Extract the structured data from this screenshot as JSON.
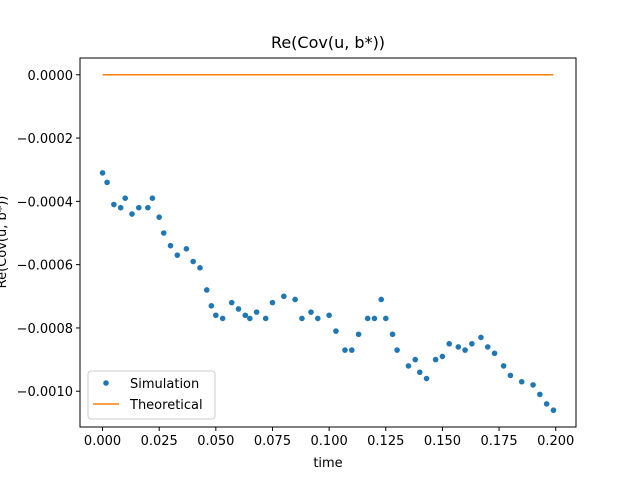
{
  "chart_data": {
    "type": "scatter",
    "title": "Re(Cov(u, b*))",
    "xlabel": "time",
    "ylabel": "Re(Cov(u, b*))",
    "xlim": [
      -0.00995,
      0.20895
    ],
    "ylim": [
      -0.001113,
      5.3e-05
    ],
    "xticks": [
      {
        "value": 0,
        "label": "0.000"
      },
      {
        "value": 0.025,
        "label": "0.025"
      },
      {
        "value": 0.05,
        "label": "0.050"
      },
      {
        "value": 0.075,
        "label": "0.075"
      },
      {
        "value": 0.1,
        "label": "0.100"
      },
      {
        "value": 0.125,
        "label": "0.125"
      },
      {
        "value": 0.15,
        "label": "0.150"
      },
      {
        "value": 0.175,
        "label": "0.175"
      },
      {
        "value": 0.2,
        "label": "0.200"
      }
    ],
    "yticks": [
      {
        "value": -0.001,
        "label": "−0.0010"
      },
      {
        "value": -0.0008,
        "label": "−0.0008"
      },
      {
        "value": -0.0006,
        "label": "−0.0006"
      },
      {
        "value": -0.0004,
        "label": "−0.0004"
      },
      {
        "value": -0.0002,
        "label": "−0.0002"
      },
      {
        "value": 0,
        "label": "0.0000"
      }
    ],
    "legend": "lower left",
    "series": [
      {
        "name": "Simulation",
        "color": "#1f77b4",
        "style": "marker",
        "x": [
          0,
          0.002,
          0.005,
          0.008,
          0.01,
          0.013,
          0.016,
          0.02,
          0.022,
          0.025,
          0.027,
          0.03,
          0.033,
          0.037,
          0.04,
          0.043,
          0.046,
          0.048,
          0.05,
          0.053,
          0.057,
          0.06,
          0.063,
          0.065,
          0.068,
          0.072,
          0.075,
          0.08,
          0.085,
          0.088,
          0.092,
          0.095,
          0.1,
          0.103,
          0.107,
          0.11,
          0.113,
          0.117,
          0.12,
          0.123,
          0.125,
          0.128,
          0.13,
          0.135,
          0.138,
          0.14,
          0.143,
          0.147,
          0.15,
          0.153,
          0.157,
          0.16,
          0.163,
          0.167,
          0.17,
          0.173,
          0.177,
          0.18,
          0.185,
          0.19,
          0.193,
          0.196,
          0.199
        ],
        "values": [
          -0.00031,
          -0.00034,
          -0.00041,
          -0.00042,
          -0.00039,
          -0.00044,
          -0.00042,
          -0.00042,
          -0.00039,
          -0.00045,
          -0.0005,
          -0.00054,
          -0.00057,
          -0.00055,
          -0.00059,
          -0.00061,
          -0.00068,
          -0.00073,
          -0.00076,
          -0.00077,
          -0.00072,
          -0.00074,
          -0.00076,
          -0.00077,
          -0.00075,
          -0.00077,
          -0.00072,
          -0.0007,
          -0.00071,
          -0.00077,
          -0.00075,
          -0.00077,
          -0.00076,
          -0.00081,
          -0.00087,
          -0.00087,
          -0.00082,
          -0.00077,
          -0.00077,
          -0.00071,
          -0.00077,
          -0.00082,
          -0.00087,
          -0.00092,
          -0.0009,
          -0.00094,
          -0.00096,
          -0.0009,
          -0.00089,
          -0.00085,
          -0.00086,
          -0.00087,
          -0.00085,
          -0.00083,
          -0.00086,
          -0.00088,
          -0.00092,
          -0.00095,
          -0.00097,
          -0.00098,
          -0.00101,
          -0.00104,
          -0.00106
        ]
      },
      {
        "name": "Theoretical",
        "color": "#ff7f0e",
        "style": "line",
        "x": [
          0,
          0.199
        ],
        "values": [
          0,
          0
        ]
      }
    ]
  }
}
